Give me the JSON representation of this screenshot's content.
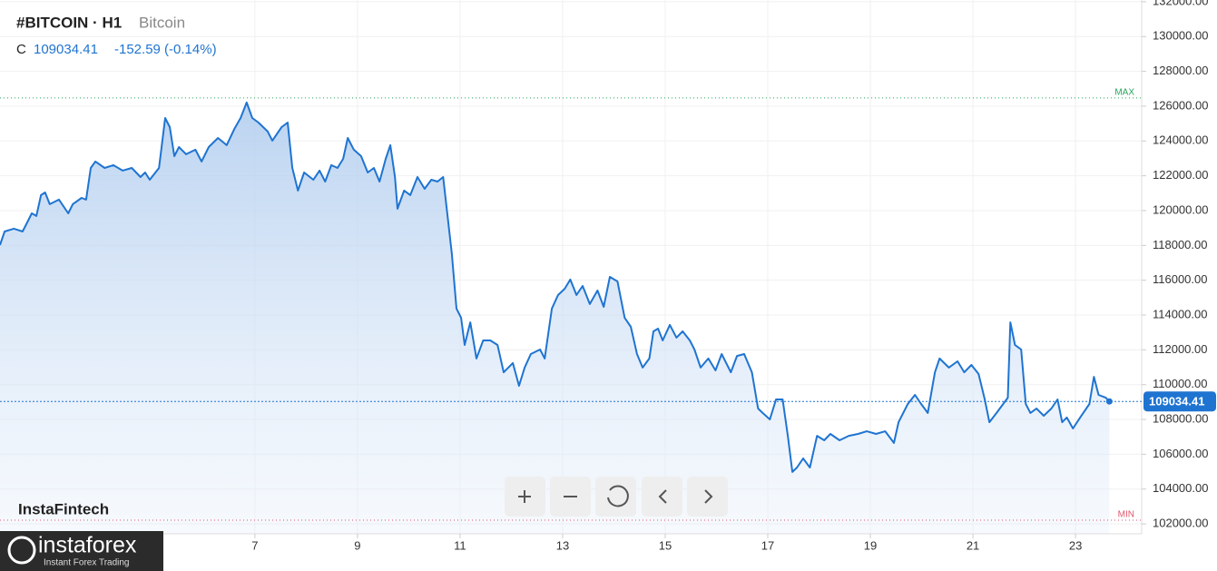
{
  "chart_data": {
    "type": "area",
    "title": "#BITCOIN · H1",
    "subtitle": "Bitcoin",
    "close_prefix": "C",
    "close": "109034.41",
    "change": "-152.59 (-0.14%)",
    "watermark": "InstaFintech",
    "logo": "instaforex",
    "logo_tagline": "Instant Forex Trading",
    "max_line": {
      "value": 126470,
      "label": "MAX",
      "color": "#26a65b"
    },
    "min_line": {
      "value": 102210,
      "label": "MIN",
      "color": "#e0566b"
    },
    "grid": true,
    "series": [
      {
        "name": "Bitcoin",
        "color": "#1f74d1",
        "x": [
          2.03,
          2.12,
          2.3,
          2.47,
          2.56,
          2.65,
          2.74,
          2.83,
          2.91,
          3.0,
          3.18,
          3.36,
          3.45,
          3.62,
          3.71,
          3.8,
          3.89,
          4.07,
          4.24,
          4.42,
          4.6,
          4.77,
          4.86,
          4.95,
          5.13,
          5.25,
          5.34,
          5.43,
          5.52,
          5.66,
          5.84,
          5.96,
          6.1,
          6.28,
          6.45,
          6.6,
          6.72,
          6.84,
          6.95,
          7.07,
          7.25,
          7.34,
          7.52,
          7.64,
          7.73,
          7.84,
          7.96,
          8.14,
          8.26,
          8.37,
          8.49,
          8.61,
          8.72,
          8.81,
          8.93,
          9.07,
          9.2,
          9.32,
          9.43,
          9.55,
          9.64,
          9.73,
          9.78,
          9.91,
          10.03,
          10.17,
          10.31,
          10.44,
          10.56,
          10.67,
          10.76,
          10.84,
          10.93,
          11.02,
          11.09,
          11.2,
          11.32,
          11.45,
          11.59,
          11.73,
          11.85,
          12.03,
          12.15,
          12.26,
          12.38,
          12.56,
          12.65,
          12.79,
          12.91,
          13.04,
          13.15,
          13.27,
          13.39,
          13.53,
          13.68,
          13.8,
          13.92,
          14.07,
          14.21,
          14.33,
          14.45,
          14.56,
          14.69,
          14.77,
          14.86,
          14.95,
          15.09,
          15.22,
          15.34,
          15.48,
          15.57,
          15.69,
          15.84,
          15.98,
          16.1,
          16.28,
          16.4,
          16.54,
          16.69,
          16.81,
          16.9,
          17.04,
          17.16,
          17.29,
          17.39,
          17.48,
          17.57,
          17.69,
          17.82,
          17.96,
          18.1,
          18.22,
          18.4,
          18.58,
          18.76,
          18.93,
          19.11,
          19.29,
          19.46,
          19.55,
          19.73,
          19.87,
          19.99,
          20.12,
          20.26,
          20.35,
          20.53,
          20.7,
          20.83,
          20.97,
          21.11,
          21.23,
          21.32,
          21.46,
          21.59,
          21.68,
          21.73,
          21.82,
          21.94,
          22.03,
          22.12,
          22.24,
          22.38,
          22.53,
          22.65,
          22.74,
          22.83,
          22.95,
          23.09,
          23.27,
          23.36,
          23.45,
          23.59,
          23.66
        ],
        "values": [
          118020,
          118800,
          118960,
          118800,
          119320,
          119840,
          119690,
          120890,
          121040,
          120370,
          120630,
          119840,
          120370,
          120730,
          120630,
          122450,
          122820,
          122450,
          122610,
          122300,
          122450,
          121930,
          122190,
          121770,
          122450,
          125320,
          124800,
          123130,
          123650,
          123240,
          123500,
          122820,
          123650,
          124170,
          123760,
          124700,
          125320,
          126210,
          125320,
          125060,
          124540,
          124020,
          124800,
          125060,
          122450,
          121150,
          122190,
          121770,
          122300,
          121670,
          122610,
          122450,
          122970,
          124170,
          123500,
          123130,
          122190,
          122450,
          121670,
          122970,
          123760,
          121930,
          120110,
          121150,
          120890,
          121930,
          121250,
          121770,
          121670,
          121930,
          119580,
          117500,
          114370,
          113840,
          112280,
          113580,
          111500,
          112540,
          112540,
          112280,
          110710,
          111240,
          109930,
          110980,
          111760,
          112020,
          111500,
          114370,
          115150,
          115510,
          116040,
          115150,
          115670,
          114630,
          115410,
          114470,
          116190,
          115930,
          113840,
          113320,
          111760,
          110980,
          111500,
          113060,
          113220,
          112540,
          113430,
          112700,
          113060,
          112540,
          112020,
          110980,
          111500,
          110820,
          111760,
          110710,
          111650,
          111760,
          110710,
          108630,
          108370,
          108000,
          109150,
          109150,
          107060,
          104980,
          105240,
          105760,
          105240,
          107060,
          106800,
          107170,
          106800,
          107060,
          107170,
          107320,
          107170,
          107320,
          106650,
          107840,
          108890,
          109410,
          108890,
          108370,
          110710,
          111500,
          110980,
          111340,
          110710,
          111130,
          110610,
          109150,
          107840,
          108370,
          108890,
          109250,
          113580,
          112280,
          112020,
          108890,
          108370,
          108630,
          108210,
          108630,
          109150,
          107840,
          108110,
          107480,
          108110,
          108890,
          110450,
          109410,
          109250,
          109034.41
        ]
      }
    ],
    "xlim": [
      2.03,
      24.29
    ],
    "xticks": [
      7,
      9,
      11,
      13,
      15,
      17,
      19,
      21,
      23
    ],
    "ylim": [
      101430,
      132100
    ],
    "yticks": [
      {
        "value": 102000,
        "label": "102000.00"
      },
      {
        "value": 104000,
        "label": "104000.00"
      },
      {
        "value": 106000,
        "label": "106000.00"
      },
      {
        "value": 108000,
        "label": "108000.00"
      },
      {
        "value": 110000,
        "label": "110000.00"
      },
      {
        "value": 112000,
        "label": "112000.00"
      },
      {
        "value": 114000,
        "label": "114000.00"
      },
      {
        "value": 116000,
        "label": "116000.00"
      },
      {
        "value": 118000,
        "label": "118000.00"
      },
      {
        "value": 120000,
        "label": "120000.00"
      },
      {
        "value": 122000,
        "label": "122000.00"
      },
      {
        "value": 124000,
        "label": "124000.00"
      },
      {
        "value": 126000,
        "label": "126000.00"
      },
      {
        "value": 128000,
        "label": "128000.00"
      },
      {
        "value": 130000,
        "label": "130000.00"
      },
      {
        "value": 132000,
        "label": "132000.00"
      }
    ]
  }
}
